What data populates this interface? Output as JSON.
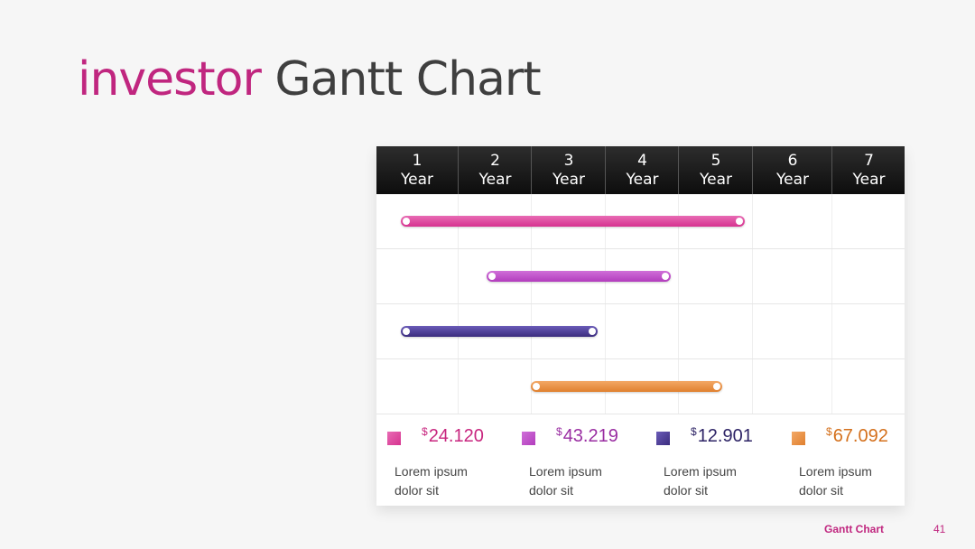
{
  "title": {
    "accent": "investor",
    "rest": "Gantt Chart"
  },
  "footer": {
    "label": "Gantt Chart",
    "page_number": "41"
  },
  "chart_data": {
    "type": "gantt",
    "columns": [
      {
        "num": "1",
        "unit": "Year"
      },
      {
        "num": "2",
        "unit": "Year"
      },
      {
        "num": "3",
        "unit": "Year"
      },
      {
        "num": "4",
        "unit": "Year"
      },
      {
        "num": "5",
        "unit": "Year"
      },
      {
        "num": "6",
        "unit": "Year"
      },
      {
        "num": "7",
        "unit": "Year"
      }
    ],
    "tasks": [
      {
        "start": 1.3,
        "end": 5.9,
        "color": "#d6338f",
        "color_light": "#e86bb4"
      },
      {
        "start": 2.4,
        "end": 4.9,
        "color": "#b23dbd",
        "color_light": "#cf6fd8"
      },
      {
        "start": 1.3,
        "end": 3.9,
        "color": "#3b2c7e",
        "color_light": "#6a5bb8"
      },
      {
        "start": 3.0,
        "end": 5.6,
        "color": "#e0802f",
        "color_light": "#f3a866"
      }
    ],
    "legend": [
      {
        "currency": "$",
        "amount": "24.120",
        "label": "Lorem ipsum dolor sit",
        "color": "#c8267f"
      },
      {
        "currency": "$",
        "amount": "43.219",
        "label": "Lorem ipsum dolor sit",
        "color": "#9a2ea2"
      },
      {
        "currency": "$",
        "amount": "12.901",
        "label": "Lorem ipsum dolor sit",
        "color": "#2e2466"
      },
      {
        "currency": "$",
        "amount": "67.092",
        "label": "Lorem ipsum dolor sit",
        "color": "#d4701c"
      }
    ]
  }
}
